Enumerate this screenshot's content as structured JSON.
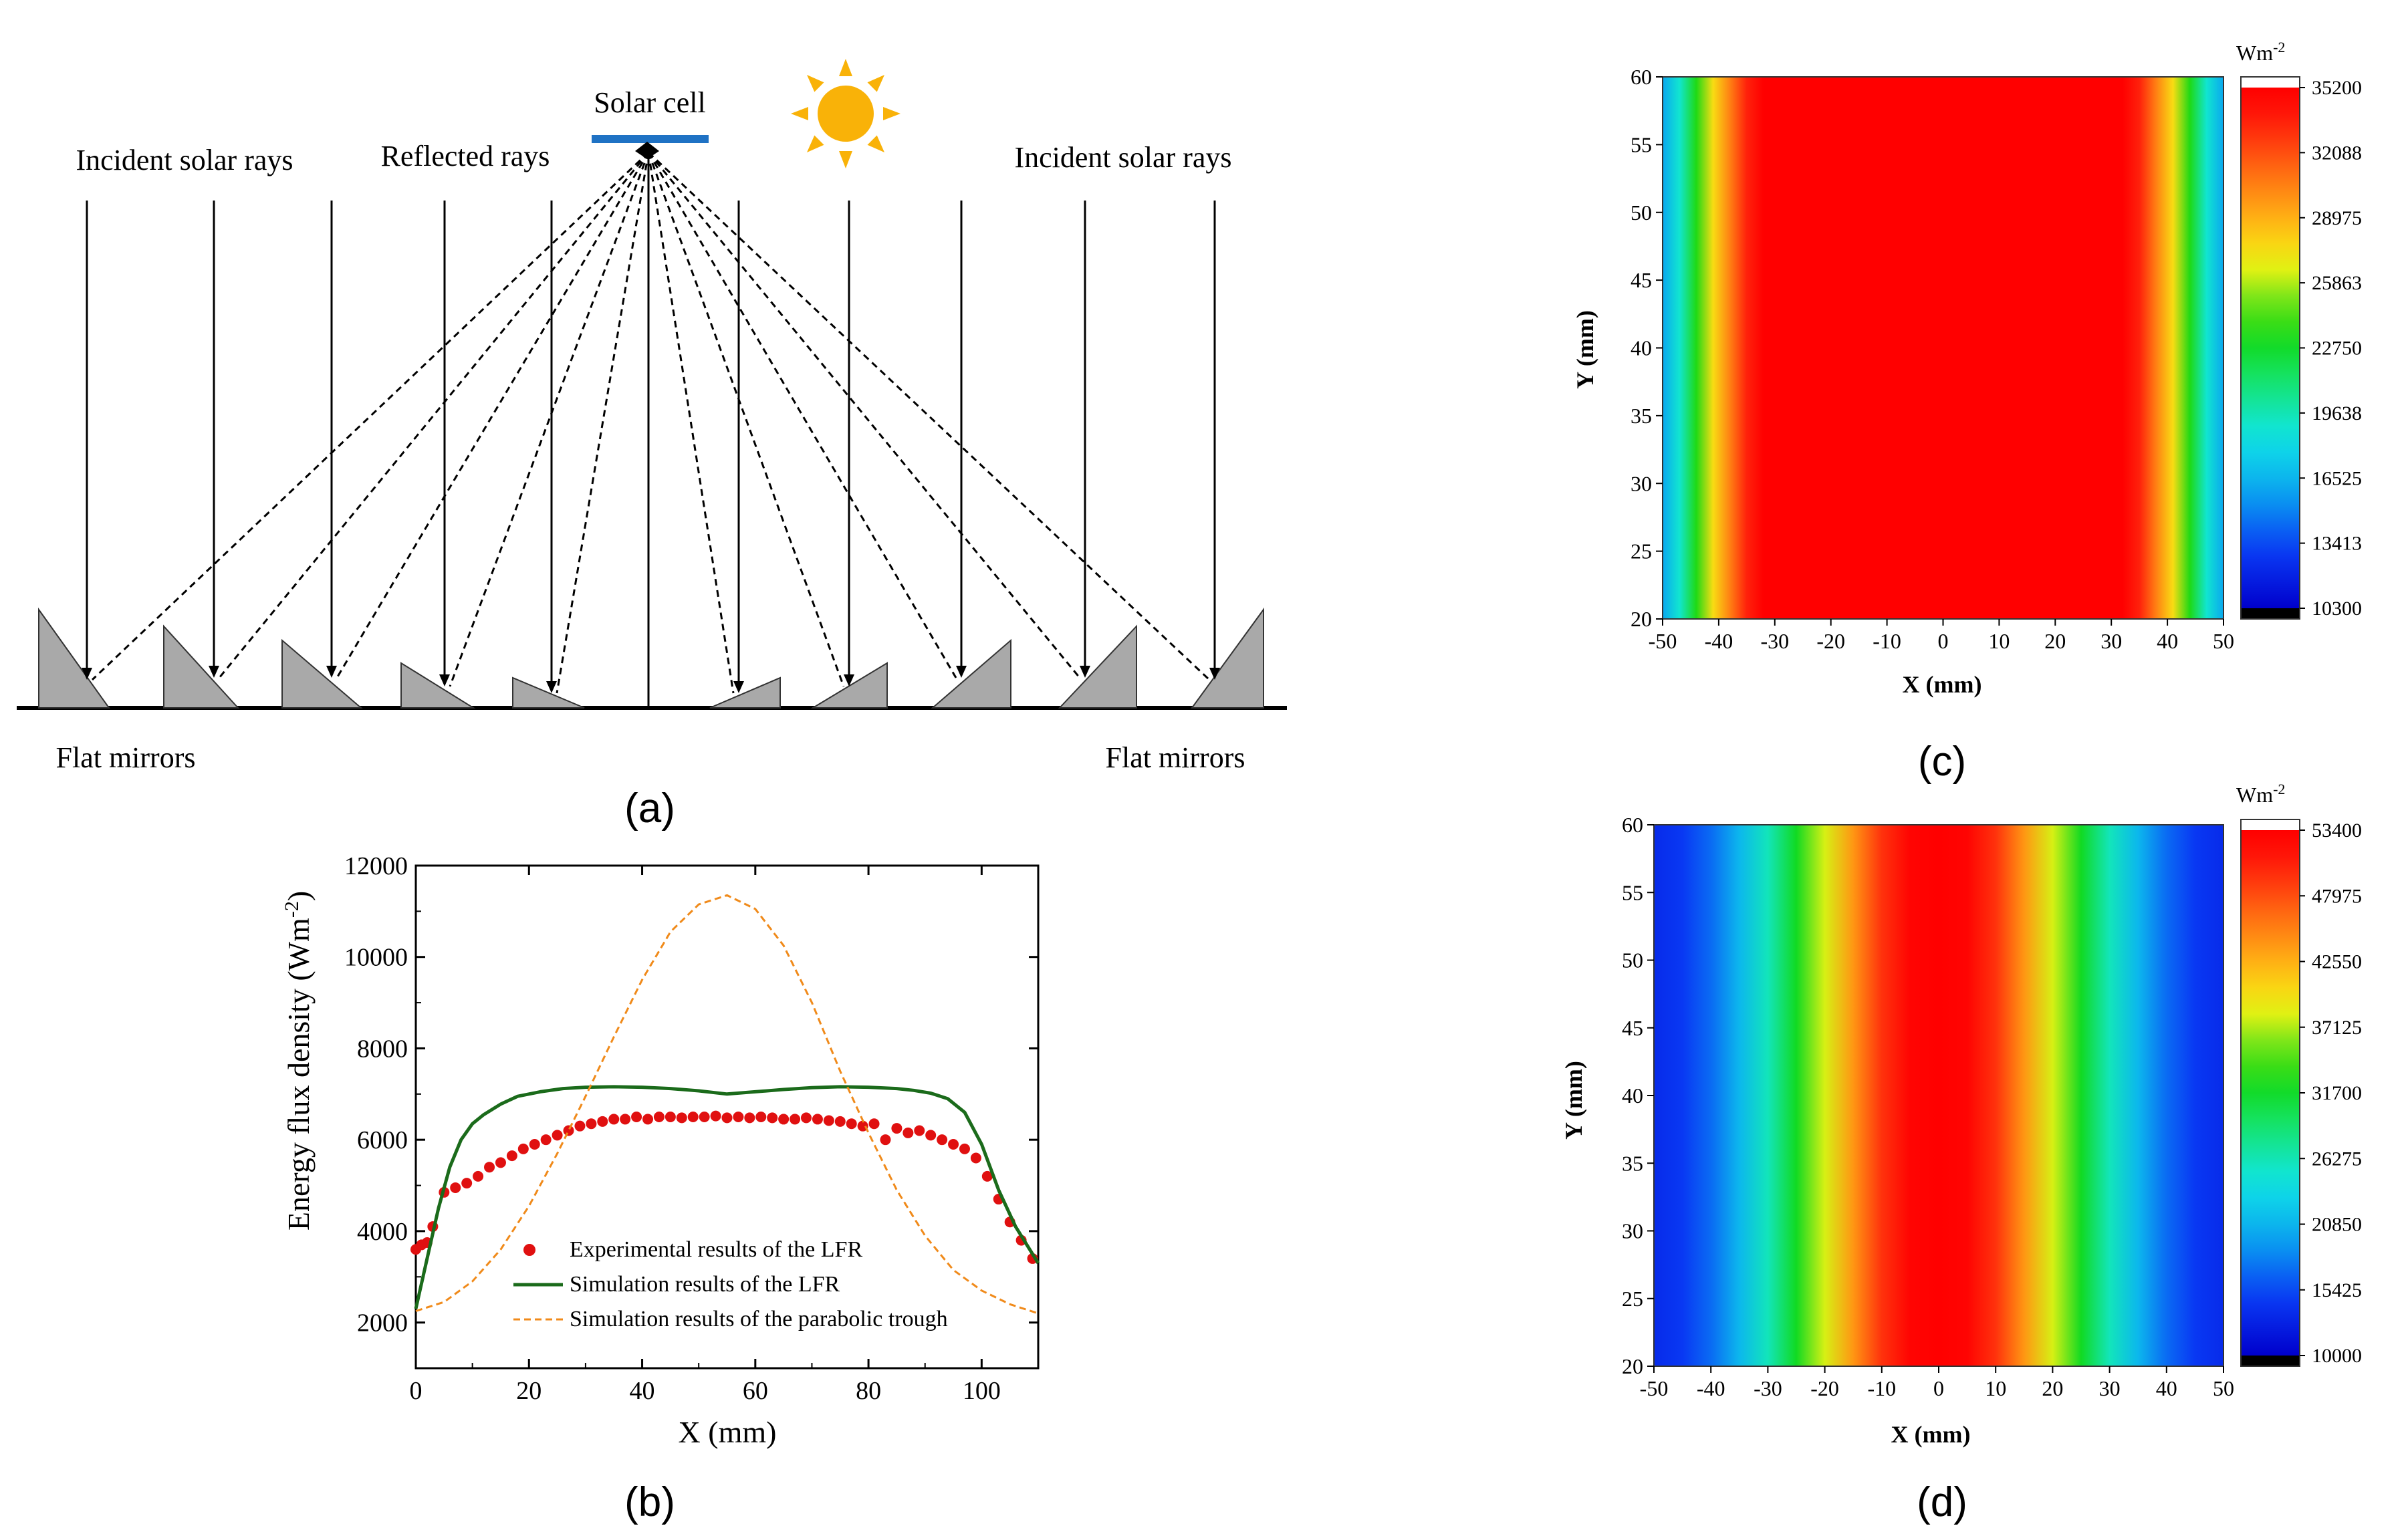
{
  "panel_a": {
    "solar_cell": "Solar cell",
    "incident_left": "Incident solar rays",
    "reflected": "Reflected rays",
    "incident_right": "Incident solar rays",
    "mirrors_left": "Flat mirrors",
    "mirrors_right": "Flat mirrors",
    "caption": "(a)",
    "sun_icon": "sun-icon"
  },
  "panel_b_caption": "(b)",
  "panel_c_caption": "(c)",
  "panel_d_caption": "(d)",
  "chart_data": [
    {
      "id": "b",
      "type": "line",
      "xlabel": "X (mm)",
      "ylabel_main": "Energy flux density (Wm",
      "ylabel_sup": "-2",
      "ylabel_end": ")",
      "xlim": [
        0,
        110
      ],
      "ylim": [
        1000,
        12000
      ],
      "xticks": [
        0,
        20,
        40,
        60,
        80,
        100
      ],
      "yticks": [
        2000,
        4000,
        6000,
        8000,
        10000,
        12000
      ],
      "legend_position": "bottom",
      "series": [
        {
          "name": "Experimental results of the LFR",
          "kind": "scatter",
          "color": "#e01010",
          "x": [
            0,
            1,
            2,
            3,
            5,
            7,
            9,
            11,
            13,
            15,
            17,
            19,
            21,
            23,
            25,
            27,
            29,
            31,
            33,
            35,
            37,
            39,
            41,
            43,
            45,
            47,
            49,
            51,
            53,
            55,
            57,
            59,
            61,
            63,
            65,
            67,
            69,
            71,
            73,
            75,
            77,
            79,
            81,
            83,
            85,
            87,
            89,
            91,
            93,
            95,
            97,
            99,
            101,
            103,
            105,
            107,
            109
          ],
          "y": [
            3600,
            3700,
            3750,
            4100,
            4850,
            4950,
            5050,
            5200,
            5400,
            5500,
            5650,
            5800,
            5900,
            6000,
            6100,
            6200,
            6300,
            6350,
            6400,
            6450,
            6450,
            6500,
            6450,
            6500,
            6500,
            6480,
            6500,
            6500,
            6520,
            6480,
            6500,
            6480,
            6500,
            6480,
            6450,
            6450,
            6480,
            6450,
            6420,
            6400,
            6350,
            6300,
            6350,
            6000,
            6250,
            6150,
            6200,
            6100,
            6000,
            5900,
            5800,
            5600,
            5200,
            4700,
            4200,
            3800,
            3400
          ]
        },
        {
          "name": "Simulation results of the LFR",
          "kind": "line",
          "color": "#1b6b1b",
          "x": [
            0,
            2,
            4,
            6,
            8,
            10,
            12,
            15,
            18,
            22,
            26,
            30,
            35,
            40,
            45,
            50,
            55,
            60,
            65,
            70,
            75,
            80,
            85,
            88,
            91,
            94,
            97,
            100,
            103,
            106,
            110
          ],
          "y": [
            2300,
            3400,
            4500,
            5400,
            6000,
            6350,
            6550,
            6780,
            6950,
            7050,
            7120,
            7150,
            7160,
            7150,
            7120,
            7070,
            7000,
            7050,
            7100,
            7140,
            7160,
            7150,
            7120,
            7080,
            7020,
            6900,
            6600,
            5900,
            4900,
            4100,
            3300
          ]
        },
        {
          "name": "Simulation results of the parabolic trough",
          "kind": "dashed",
          "color": "#f08a1a",
          "x": [
            0,
            5,
            10,
            15,
            20,
            25,
            30,
            35,
            40,
            45,
            50,
            55,
            60,
            65,
            70,
            75,
            80,
            85,
            90,
            95,
            100,
            105,
            110
          ],
          "y": [
            2250,
            2450,
            2900,
            3600,
            4550,
            5700,
            6950,
            8250,
            9500,
            10550,
            11150,
            11350,
            11050,
            10250,
            9000,
            7500,
            6150,
            4900,
            3900,
            3150,
            2700,
            2400,
            2200
          ]
        }
      ]
    },
    {
      "id": "c",
      "type": "heatmap",
      "xlabel": "X (mm)",
      "ylabel": "Y (mm)",
      "xlim": [
        -50,
        50
      ],
      "ylim": [
        20,
        60
      ],
      "xticks": [
        -50,
        -40,
        -30,
        -20,
        -10,
        0,
        10,
        20,
        30,
        40,
        50
      ],
      "yticks": [
        20,
        25,
        30,
        35,
        40,
        45,
        50,
        55,
        60
      ],
      "unit": "Wm",
      "unit_sup": "-2",
      "colorbar_ticks": [
        35200,
        32088,
        28975,
        25863,
        22750,
        19638,
        16525,
        13413,
        10300
      ],
      "profile_x": [
        -50,
        -47,
        -44,
        -41,
        -38,
        -35,
        -32,
        32,
        35,
        38,
        41,
        44,
        47,
        50
      ],
      "profile_value": [
        16000,
        19000,
        23500,
        27500,
        30500,
        33500,
        35200,
        35200,
        33500,
        30500,
        27500,
        23500,
        19000,
        16000
      ]
    },
    {
      "id": "d",
      "type": "heatmap",
      "xlabel": "X (mm)",
      "ylabel": "Y (mm)",
      "xlim": [
        -50,
        50
      ],
      "ylim": [
        20,
        60
      ],
      "xticks": [
        -50,
        -40,
        -30,
        -20,
        -10,
        0,
        10,
        20,
        30,
        40,
        50
      ],
      "yticks": [
        20,
        25,
        30,
        35,
        40,
        45,
        50,
        55,
        60
      ],
      "unit": "Wm",
      "unit_sup": "-2",
      "colorbar_ticks": [
        53400,
        47975,
        42550,
        37125,
        31700,
        26275,
        20850,
        15425,
        10000
      ],
      "profile_x": [
        -50,
        -45,
        -40,
        -35,
        -30,
        -25,
        -20,
        -15,
        -10,
        -5,
        0,
        5,
        10,
        15,
        20,
        25,
        30,
        35,
        40,
        45,
        50
      ],
      "profile_value": [
        13500,
        14500,
        17000,
        21000,
        26000,
        32000,
        38000,
        44000,
        49500,
        53000,
        53400,
        53000,
        49500,
        44000,
        38000,
        32000,
        26000,
        21000,
        17000,
        14500,
        13500
      ]
    }
  ]
}
